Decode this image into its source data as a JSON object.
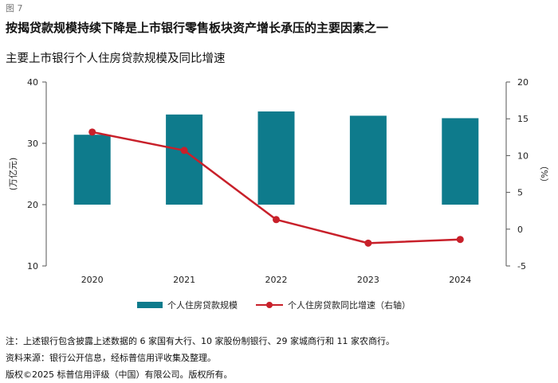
{
  "figure_label": "图 7",
  "title": "按揭贷款规模持续下降是上市银行零售板块资产增长承压的主要因素之一",
  "subtitle": "主要上市银行个人住房贷款规模及同比增速",
  "chart_data": {
    "type": "bar+line",
    "categories": [
      "2020",
      "2021",
      "2022",
      "2023",
      "2024"
    ],
    "series": [
      {
        "name": "个人住房贷款规模",
        "kind": "bar",
        "axis": "left",
        "color": "#0e7b8c",
        "values": [
          31.4,
          34.7,
          35.2,
          34.5,
          34.1
        ]
      },
      {
        "name": "个人住房贷款同比增速（右轴）",
        "kind": "line",
        "axis": "right",
        "color": "#c8202a",
        "values": [
          13.2,
          10.7,
          1.3,
          -1.9,
          -1.4
        ]
      }
    ],
    "ylabel_left": "(万亿元)",
    "ylabel_right": "（%）",
    "ylim_left": [
      10,
      40
    ],
    "yticks_left": [
      10,
      20,
      30,
      40
    ],
    "ylim_right": [
      -5,
      20
    ],
    "yticks_right": [
      -5,
      0,
      5,
      10,
      15,
      20
    ],
    "bar_baseline": 20,
    "legend_position": "bottom-center"
  },
  "notes": [
    "注：上述银行包含披露上述数据的 6 家国有大行、10 家股份制银行、29 家城商行和 11 家农商行。",
    "资料来源：银行公开信息，经标普信用评收集及整理。",
    "版权©2025 标普信用评级（中国）有限公司。版权所有。"
  ]
}
